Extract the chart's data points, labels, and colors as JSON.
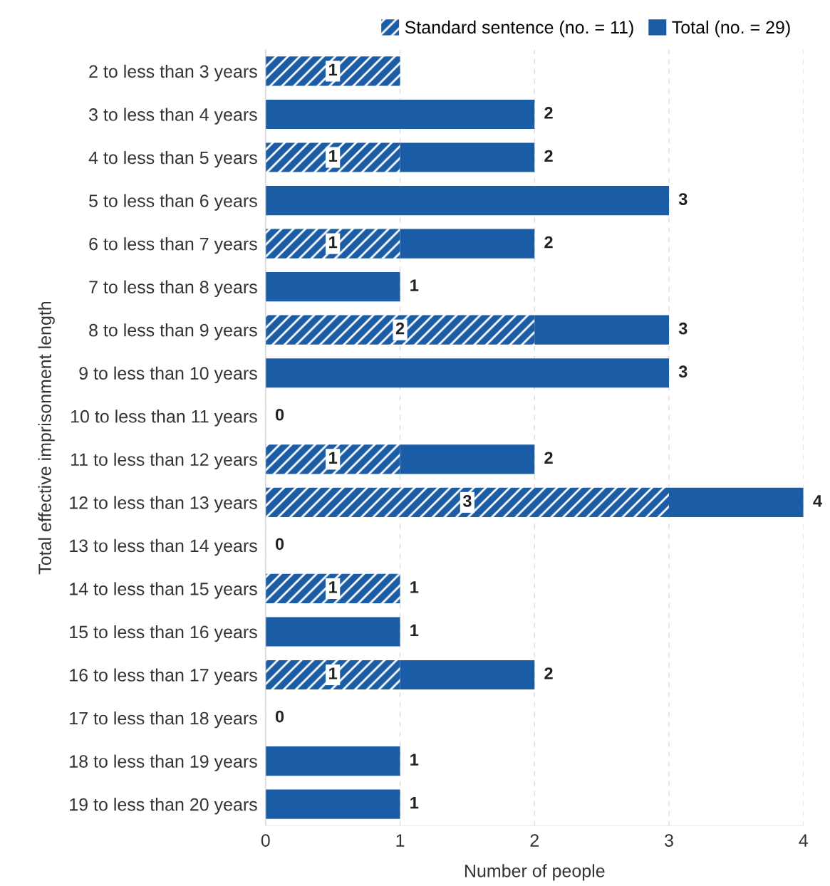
{
  "chart_data": {
    "type": "bar",
    "orientation": "horizontal",
    "stacked": true,
    "categories": [
      "2 to less than 3 years",
      "3 to less than 4 years",
      "4 to less than 5 years",
      "5 to less than 6 years",
      "6 to less than 7 years",
      "7 to less than 8 years",
      "8 to less than 9 years",
      "9 to less than 10 years",
      "10 to less than 11 years",
      "11 to less than 12 years",
      "12 to less than 13 years",
      "13 to less than 14 years",
      "14 to less than 15 years",
      "15 to less than 16 years",
      "16 to less than 17 years",
      "17 to less than 18 years",
      "18 to less than 19 years",
      "19 to less than 20 years"
    ],
    "series": [
      {
        "name": "Standard sentence (no. = 11)",
        "color": "#1a5ca6",
        "values": [
          1,
          0,
          1,
          0,
          1,
          0,
          2,
          0,
          0,
          1,
          3,
          0,
          1,
          0,
          1,
          0,
          0,
          0
        ],
        "value_labels": [
          "1",
          null,
          "1",
          null,
          "1",
          null,
          "2",
          null,
          null,
          "1",
          "3",
          null,
          "1",
          null,
          "1",
          null,
          null,
          null
        ]
      },
      {
        "name": "Total (no. = 29)",
        "color": "#1a5ca6",
        "values": [
          0,
          2,
          1,
          3,
          1,
          1,
          1,
          3,
          0,
          1,
          1,
          0,
          0,
          1,
          1,
          0,
          1,
          1
        ]
      }
    ],
    "totals": [
      null,
      "2",
      "2",
      "3",
      "2",
      "1",
      "3",
      "3",
      "0",
      "2",
      "4",
      "0",
      "1",
      "1",
      "2",
      "0",
      "1",
      "1"
    ],
    "xlim": [
      0,
      4
    ],
    "xticks": [
      0,
      1,
      2,
      3,
      4
    ],
    "grid": "x",
    "legend": "top right",
    "xlabel": "Number of people",
    "ylabel": "Total effective imprisonment length"
  }
}
